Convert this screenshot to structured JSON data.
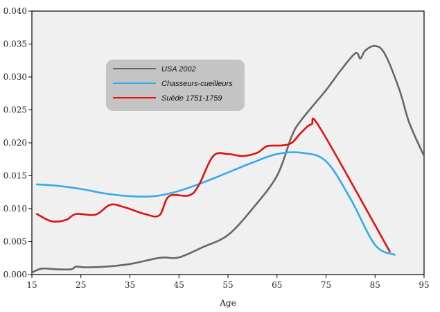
{
  "chart_data": {
    "type": "line",
    "title": "",
    "xlabel": "Age",
    "ylabel": "",
    "xlim": [
      15,
      95
    ],
    "ylim": [
      0,
      0.04
    ],
    "x_ticks": [
      "15",
      "25",
      "35",
      "45",
      "55",
      "65",
      "75",
      "85",
      "95"
    ],
    "y_ticks": [
      "0.000",
      "0.005",
      "0.010",
      "0.015",
      "0.020",
      "0.025",
      "0.030",
      "0.035",
      "0.040"
    ],
    "grid": false,
    "background": "#f0f0f0",
    "legend_position": "upper-left",
    "legend_background": "#c4c4c4",
    "series": [
      {
        "name": "USA 2002",
        "color": "#666666",
        "x": [
          15,
          17,
          20,
          23,
          24,
          26,
          30,
          35,
          40,
          42,
          45,
          50,
          55,
          60,
          65,
          68,
          70,
          75,
          78,
          81,
          82,
          83,
          85,
          87,
          90,
          92,
          95
        ],
        "y": [
          0.0003,
          0.0009,
          0.0008,
          0.0008,
          0.0012,
          0.0011,
          0.0012,
          0.0016,
          0.0024,
          0.0026,
          0.0026,
          0.0042,
          0.006,
          0.01,
          0.015,
          0.021,
          0.0235,
          0.028,
          0.031,
          0.0336,
          0.0328,
          0.034,
          0.0347,
          0.0335,
          0.028,
          0.023,
          0.018
        ]
      },
      {
        "name": "Chasseurs-cueilleurs",
        "color": "#33aaee",
        "x": [
          16,
          20,
          25,
          30,
          35,
          40,
          45,
          50,
          55,
          60,
          65,
          70,
          75,
          80,
          85,
          89
        ],
        "y": [
          0.0137,
          0.0135,
          0.013,
          0.0123,
          0.0119,
          0.0119,
          0.0127,
          0.014,
          0.0155,
          0.017,
          0.0183,
          0.0185,
          0.0172,
          0.0115,
          0.0045,
          0.003
        ]
      },
      {
        "name": "Suède 1751-1759",
        "color": "#dd1111",
        "x": [
          16,
          19,
          22,
          24,
          28,
          31,
          34,
          38,
          41,
          43,
          47,
          49,
          52,
          55,
          58,
          61,
          63,
          66,
          68,
          70,
          72,
          74,
          88
        ],
        "y": [
          0.0092,
          0.0081,
          0.0083,
          0.0092,
          0.0091,
          0.0106,
          0.0102,
          0.0092,
          0.009,
          0.0119,
          0.012,
          0.0135,
          0.018,
          0.0183,
          0.018,
          0.0185,
          0.0195,
          0.0196,
          0.02,
          0.0216,
          0.0228,
          0.022,
          0.0035
        ]
      }
    ]
  }
}
